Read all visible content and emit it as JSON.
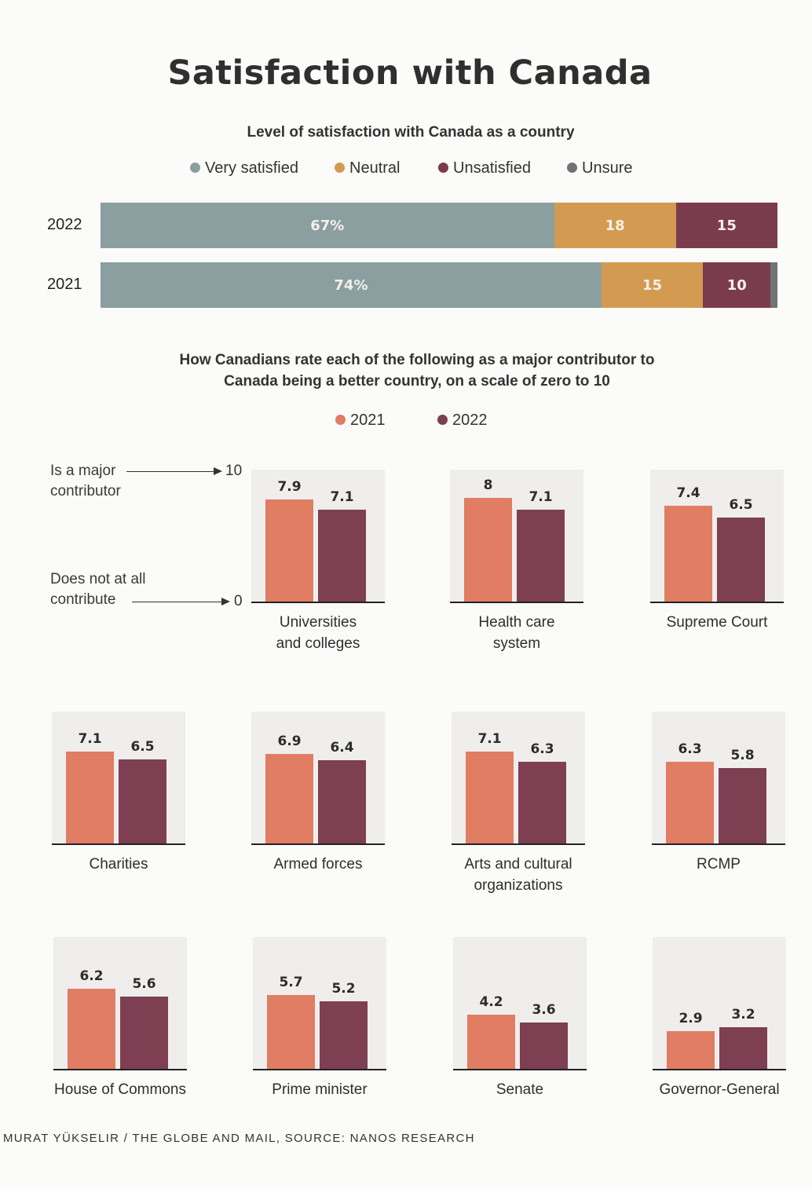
{
  "title": "Satisfaction with Canada",
  "satisfaction": {
    "subtitle": "Level of satisfaction with Canada as a country",
    "legend": [
      {
        "label": "Very satisfied",
        "color": "#8b9ea0"
      },
      {
        "label": "Neutral",
        "color": "#d39b52"
      },
      {
        "label": "Unsatisfied",
        "color": "#7a3c4c"
      },
      {
        "label": "Unsure",
        "color": "#6f7475"
      }
    ]
  },
  "contributors": {
    "subtitle_line1": "How Canadians rate each of the following as a major contributor to",
    "subtitle_line2": "Canada being a better country, on a scale of zero to 10",
    "legend": [
      {
        "label": "2021",
        "color": "#e07d63"
      },
      {
        "label": "2022",
        "color": "#7d3f51"
      }
    ],
    "guide": {
      "top_line1": "Is a major",
      "top_line2": "contributor",
      "top_value": "10",
      "bottom_line1": "Does not at all",
      "bottom_line2": "contribute",
      "bottom_value": "0"
    }
  },
  "chart_data": [
    {
      "type": "bar",
      "orientation": "horizontal-stacked",
      "title": "Level of satisfaction with Canada as a country",
      "categories": [
        "2022",
        "2021"
      ],
      "series": [
        {
          "name": "Very satisfied",
          "values": [
            67,
            74
          ],
          "labels": [
            "67%",
            "74%"
          ]
        },
        {
          "name": "Neutral",
          "values": [
            18,
            15
          ],
          "labels": [
            "18",
            "15"
          ]
        },
        {
          "name": "Unsatisfied",
          "values": [
            15,
            10
          ],
          "labels": [
            "15",
            "10"
          ]
        },
        {
          "name": "Unsure",
          "values": [
            0,
            1
          ],
          "labels": [
            "",
            ""
          ]
        }
      ],
      "xlim": [
        0,
        100
      ]
    },
    {
      "type": "bar",
      "title": "How Canadians rate each of the following as a major contributor to Canada being a better country, on a scale of zero to 10",
      "ylim": [
        0,
        10
      ],
      "categories": [
        "Universities and colleges",
        "Health care system",
        "Supreme Court",
        "Charities",
        "Armed forces",
        "Arts and cultural organizations",
        "RCMP",
        "House of Commons",
        "Prime minister",
        "Senate",
        "Governor-General"
      ],
      "category_lines": [
        [
          "Universities",
          "and colleges"
        ],
        [
          "Health care",
          "system"
        ],
        [
          "Supreme Court"
        ],
        [
          "Charities"
        ],
        [
          "Armed forces"
        ],
        [
          "Arts and cultural",
          "organizations"
        ],
        [
          "RCMP"
        ],
        [
          "House of Commons"
        ],
        [
          "Prime minister"
        ],
        [
          "Senate"
        ],
        [
          "Governor-General"
        ]
      ],
      "series": [
        {
          "name": "2021",
          "values": [
            7.9,
            8,
            7.4,
            7.1,
            6.9,
            7.1,
            6.3,
            6.2,
            5.7,
            4.2,
            2.9
          ],
          "labels": [
            "7.9",
            "8",
            "7.4",
            "7.1",
            "6.9",
            "7.1",
            "6.3",
            "6.2",
            "5.7",
            "4.2",
            "2.9"
          ]
        },
        {
          "name": "2022",
          "values": [
            7.1,
            7.1,
            6.5,
            6.5,
            6.4,
            6.3,
            5.8,
            5.6,
            5.2,
            3.6,
            3.2
          ],
          "labels": [
            "7.1",
            "7.1",
            "6.5",
            "6.5",
            "6.4",
            "6.3",
            "5.8",
            "5.6",
            "5.2",
            "3.6",
            "3.2"
          ]
        }
      ]
    }
  ],
  "footer": "MURAT YÜKSELIR / THE GLOBE AND MAIL, SOURCE: NANOS RESEARCH"
}
